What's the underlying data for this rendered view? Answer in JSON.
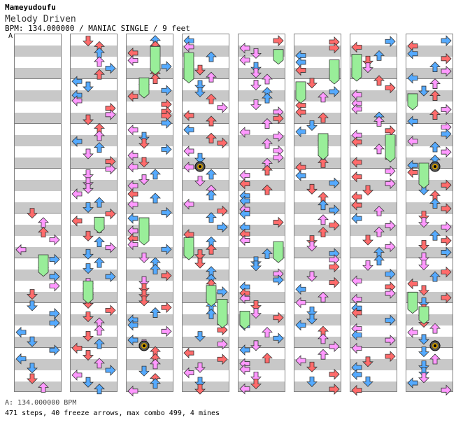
{
  "header": {
    "artist": "Mameyudoufu",
    "title": "Melody Driven",
    "info": "BPM: 134.000000 / MANIAC SINGLE / 9 feet"
  },
  "chart_marker": "A",
  "footer": {
    "bpm_line": "A: 134.000000 BPM",
    "stats_line": "471 steps, 40 freeze arrows, max combo 499, 4 mines"
  },
  "colors": {
    "red": "#ff6b6b",
    "blue": "#55aaff",
    "pink": "#ff99ff",
    "green_freeze": "#99ee99",
    "stripe": "#c8c8c8",
    "border": "#808080"
  },
  "columns": [
    {
      "index": 1,
      "icon": "note-column"
    },
    {
      "index": 2,
      "icon": "note-column"
    },
    {
      "index": 3,
      "icon": "note-column"
    },
    {
      "index": 4,
      "icon": "note-column"
    },
    {
      "index": 5,
      "icon": "note-column"
    },
    {
      "index": 6,
      "icon": "note-column"
    },
    {
      "index": 7,
      "icon": "note-column"
    },
    {
      "index": 8,
      "icon": "note-column"
    }
  ]
}
